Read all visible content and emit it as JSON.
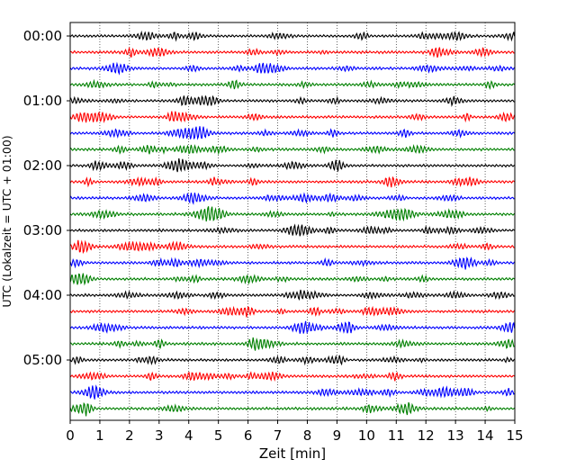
{
  "chart_data": {
    "type": "line",
    "title": "",
    "xlabel": "Zeit  [min]",
    "ylabel": "UTC (Lokalzeit = UTC + 01:00)",
    "xlim": [
      0,
      15
    ],
    "x_ticks": [
      "0",
      "1",
      "2",
      "3",
      "4",
      "5",
      "6",
      "7",
      "8",
      "9",
      "10",
      "11",
      "12",
      "13",
      "14",
      "15"
    ],
    "y_ticks": [
      "00:00",
      "01:00",
      "02:00",
      "03:00",
      "04:00",
      "05:00"
    ],
    "trace_interval_min": 15,
    "trace_count": 24,
    "trace_colors": [
      "#000000",
      "#ff0000",
      "#0000ff",
      "#008000"
    ],
    "grid": "vertical dotted at each minute"
  }
}
